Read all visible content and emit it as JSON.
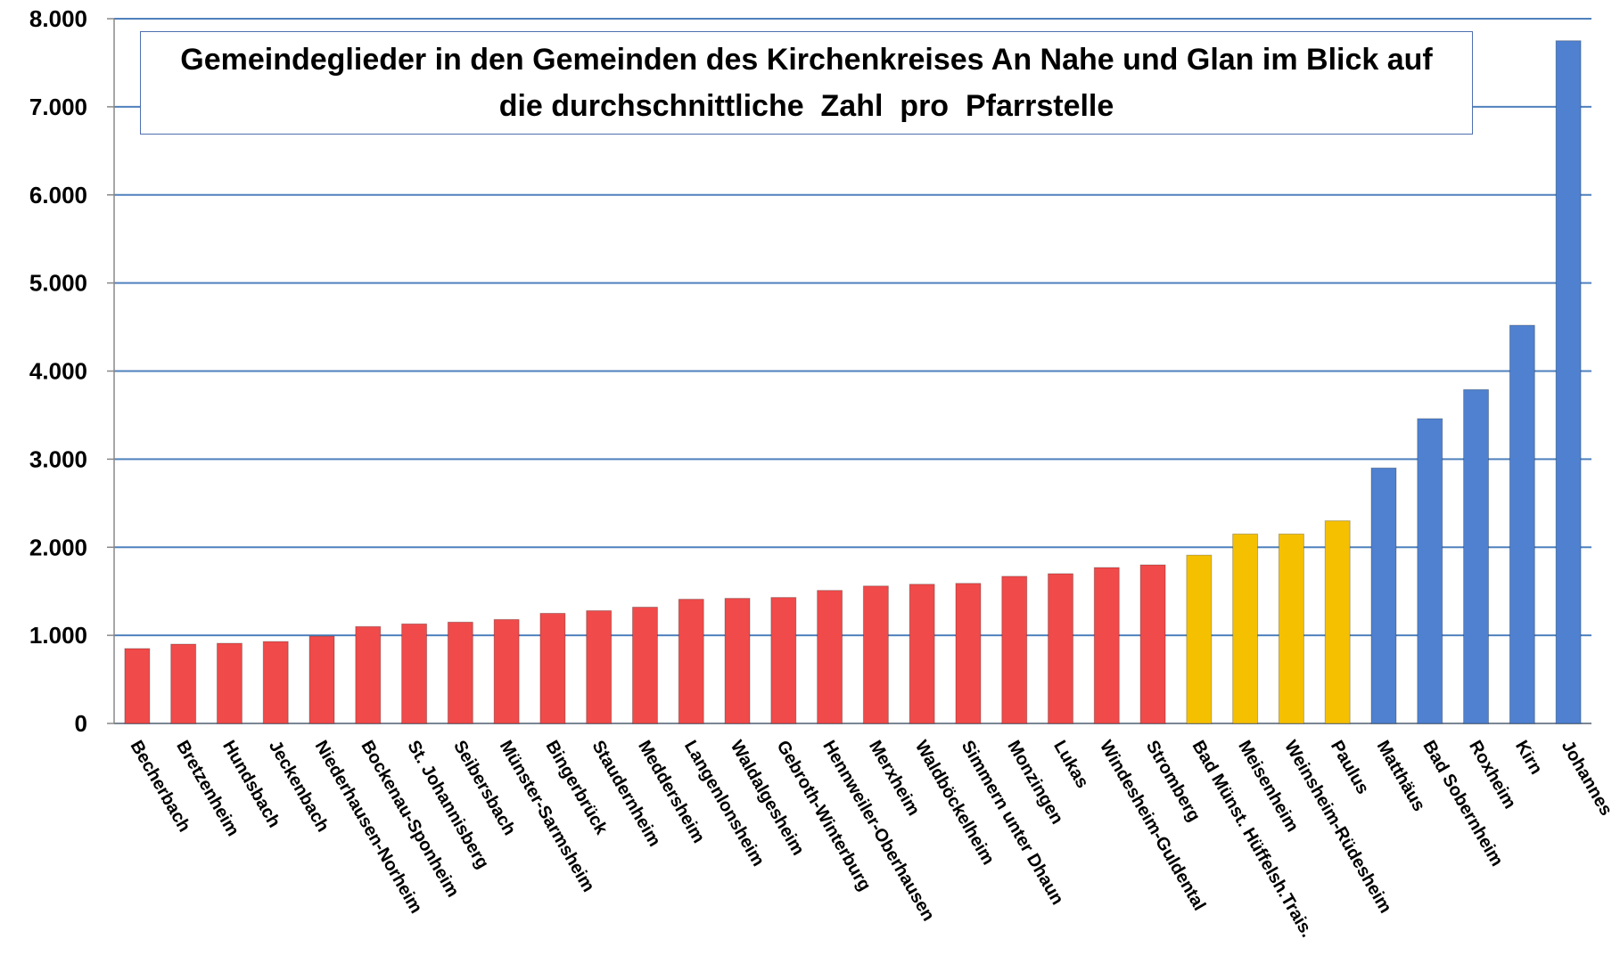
{
  "chart_data": {
    "type": "bar",
    "title": "Gemeindeglieder in den Gemeinden des Kirchenkreises An Nahe und Glan im Blick auf die durchschnittliche  Zahl  pro  Pfarrstelle",
    "categories": [
      "Becherbach",
      "Bretzenheim",
      "Hundsbach",
      "Jeckenbach",
      "Niederhausen-Norheim",
      "Bockenau-Sponheim",
      "St. Johannisberg",
      "Seibersbach",
      "Münster-Sarmsheim",
      "Bingerbrück",
      "Staudernheim",
      "Meddersheim",
      "Langenlonsheim",
      "Waldalgesheim",
      "Gebroth-Winterburg",
      "Hennweiler-Oberhausen",
      "Merxheim",
      "Waldböckelheim",
      "Simmern unter Dhaun",
      "Monzingen",
      "Lukas",
      "Windesheim-Guldental",
      "Stromberg",
      "Bad Münst. Hüffelsh.Trais.",
      "Meisenheim",
      "Weinsheim-Rüdesheim",
      "Paulus",
      "Matthäus",
      "Bad Sobernheim",
      "Roxheim",
      "Kirn",
      "Johannes"
    ],
    "values": [
      850,
      900,
      910,
      930,
      990,
      1100,
      1130,
      1150,
      1180,
      1250,
      1280,
      1320,
      1410,
      1420,
      1430,
      1510,
      1560,
      1580,
      1590,
      1670,
      1700,
      1770,
      1800,
      1910,
      2150,
      2150,
      2300,
      2900,
      3460,
      3790,
      4520,
      7750
    ],
    "colors": [
      "#f04a4a",
      "#f04a4a",
      "#f04a4a",
      "#f04a4a",
      "#f04a4a",
      "#f04a4a",
      "#f04a4a",
      "#f04a4a",
      "#f04a4a",
      "#f04a4a",
      "#f04a4a",
      "#f04a4a",
      "#f04a4a",
      "#f04a4a",
      "#f04a4a",
      "#f04a4a",
      "#f04a4a",
      "#f04a4a",
      "#f04a4a",
      "#f04a4a",
      "#f04a4a",
      "#f04a4a",
      "#f04a4a",
      "#f5c000",
      "#f5c000",
      "#f5c000",
      "#f5c000",
      "#4f81d0",
      "#4f81d0",
      "#4f81d0",
      "#4f81d0",
      "#4f81d0"
    ],
    "ylim": [
      0,
      8000
    ],
    "yticks": [
      0,
      {
        "value": 1000,
        "label": "1.000"
      },
      {
        "value": 2000,
        "label": "2.000"
      },
      {
        "value": 3000,
        "label": "3.000"
      },
      {
        "value": 4000,
        "label": "4.000"
      },
      {
        "value": 5000,
        "label": "5.000"
      },
      {
        "value": 6000,
        "label": "6.000"
      },
      {
        "value": 7000,
        "label": "7.000"
      },
      {
        "value": 8000,
        "label": "8.000"
      }
    ],
    "grid": true
  }
}
